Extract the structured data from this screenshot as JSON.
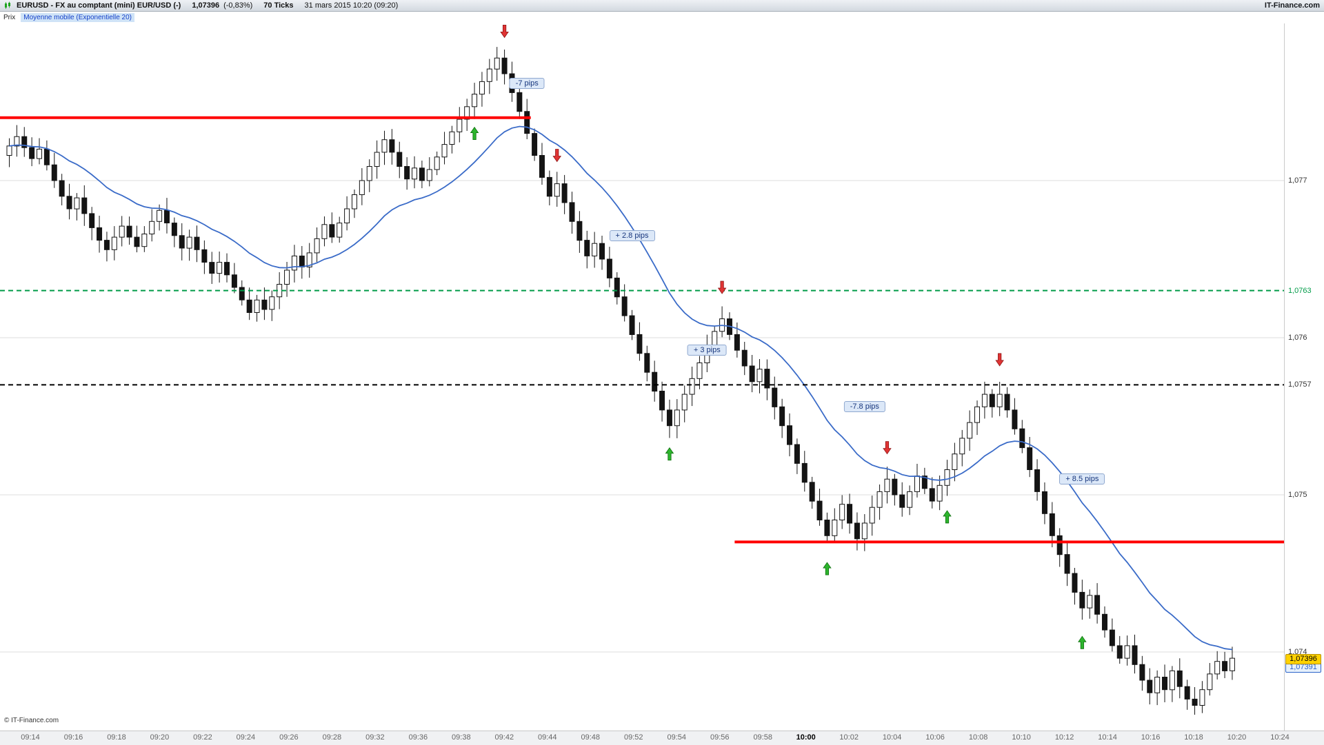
{
  "title_bar": {
    "instrument": "EURUSD - FX au comptant (mini) EUR/USD (-)",
    "price": "1,07396",
    "change": "(-0,83%)",
    "timeframe": "70 Ticks",
    "datetime": "31 mars 2015 10:20 (09:20)",
    "brand": "IT-Finance.com"
  },
  "indicator_bar": {
    "price_label": "Prix",
    "indicator_label": "Moyenne mobile (Exponentielle 20)"
  },
  "footer": {
    "copyright": "© IT-Finance.com"
  },
  "colors": {
    "up_fill": "#ffffff",
    "down_fill": "#141414",
    "candle_outline": "#141414",
    "grid": "#dedede",
    "up_arrow": "#2db52d",
    "up_arrow_edge": "#0e6e0e",
    "down_arrow": "#e03434",
    "down_arrow_edge": "#8f1414"
  },
  "x_axis": {
    "labels": [
      "09:14",
      "09:16",
      "09:18",
      "09:20",
      "09:22",
      "09:24",
      "09:26",
      "09:28",
      "09:32",
      "09:36",
      "09:38",
      "09:42",
      "09:44",
      "09:48",
      "09:52",
      "09:54",
      "09:56",
      "09:58",
      "10:00",
      "10:02",
      "10:04",
      "10:06",
      "10:08",
      "10:10",
      "10:12",
      "10:14",
      "10:16",
      "10:18",
      "10:20",
      "10:24"
    ],
    "bold_index": 18
  },
  "y_axis": {
    "labels": [
      {
        "text": "1,077",
        "price": 1.077,
        "color": "#333333"
      },
      {
        "text": "1,0763",
        "price": 1.0763,
        "color": "#009b48"
      },
      {
        "text": "1,076",
        "price": 1.076,
        "color": "#333333"
      },
      {
        "text": "1,0757",
        "price": 1.0757,
        "color": "#333333"
      },
      {
        "text": "1,075",
        "price": 1.075,
        "color": "#333333"
      },
      {
        "text": "1,074",
        "price": 1.074,
        "color": "#333333"
      }
    ],
    "price_badges": [
      {
        "text": "1,07396",
        "price": 1.07396,
        "bg": "#ffd200",
        "color": "#000000",
        "border": "#b89000"
      },
      {
        "text": "1,07391",
        "price": 1.07391,
        "bg": "#e6f0fb",
        "color": "#2a62c9",
        "border": "#2a62c9"
      }
    ]
  },
  "chart_data": {
    "type": "candlestick",
    "symbol": "EURUSD",
    "period": "70 ticks",
    "title": "EURUSD - FX au comptant (mini)",
    "price_range": [
      1.0735,
      1.078
    ],
    "gridlines": [
      1.077,
      1.076,
      1.075,
      1.074
    ],
    "first_open": 1.07716,
    "last_close": 1.07396,
    "closes": [
      1.07722,
      1.07728,
      1.07721,
      1.07714,
      1.0772,
      1.0771,
      1.077,
      1.0769,
      1.07682,
      1.07689,
      1.07679,
      1.0767,
      1.07662,
      1.07656,
      1.07664,
      1.07671,
      1.07664,
      1.07658,
      1.07666,
      1.07674,
      1.07681,
      1.07673,
      1.07665,
      1.07657,
      1.07664,
      1.07656,
      1.07648,
      1.07641,
      1.07648,
      1.0764,
      1.07632,
      1.07624,
      1.07616,
      1.07624,
      1.07618,
      1.07626,
      1.07634,
      1.07643,
      1.07652,
      1.07645,
      1.07654,
      1.07663,
      1.07672,
      1.07664,
      1.07673,
      1.07682,
      1.07691,
      1.077,
      1.07709,
      1.07718,
      1.07726,
      1.07718,
      1.07709,
      1.07701,
      1.07708,
      1.077,
      1.07707,
      1.07715,
      1.07723,
      1.07731,
      1.07739,
      1.07747,
      1.07755,
      1.07763,
      1.07771,
      1.07778,
      1.07768,
      1.07756,
      1.07744,
      1.0773,
      1.07716,
      1.07702,
      1.0769,
      1.07698,
      1.07686,
      1.07674,
      1.07662,
      1.07652,
      1.0766,
      1.0765,
      1.07638,
      1.07626,
      1.07614,
      1.07602,
      1.0759,
      1.07578,
      1.07566,
      1.07554,
      1.07544,
      1.07554,
      1.07564,
      1.07574,
      1.07584,
      1.07594,
      1.07604,
      1.07612,
      1.07602,
      1.07592,
      1.07582,
      1.07572,
      1.0758,
      1.07568,
      1.07556,
      1.07544,
      1.07532,
      1.0752,
      1.07508,
      1.07496,
      1.07484,
      1.07474,
      1.07484,
      1.07494,
      1.07482,
      1.07472,
      1.07482,
      1.07492,
      1.07502,
      1.0751,
      1.075,
      1.07492,
      1.07502,
      1.07512,
      1.07504,
      1.07496,
      1.07506,
      1.07516,
      1.07526,
      1.07536,
      1.07546,
      1.07556,
      1.07564,
      1.07556,
      1.07564,
      1.07554,
      1.07542,
      1.0753,
      1.07516,
      1.07502,
      1.07488,
      1.07474,
      1.07462,
      1.0745,
      1.07438,
      1.07428,
      1.07436,
      1.07424,
      1.07414,
      1.07404,
      1.07396,
      1.07404,
      1.07392,
      1.07382,
      1.07374,
      1.07384,
      1.07376,
      1.07388,
      1.07378,
      1.0737,
      1.07366,
      1.07376,
      1.07386,
      1.07394,
      1.07388,
      1.07396
    ],
    "indicator": {
      "name": "Moyenne mobile Exponentielle",
      "period": 20,
      "color": "#3a6bc8"
    },
    "levels": [
      {
        "name": "resistance-line",
        "price": 1.0774,
        "color": "#ff0000",
        "style": "solid",
        "width": 4,
        "from_index": null,
        "to_index": 69
      },
      {
        "name": "support-line",
        "price": 1.0747,
        "color": "#ff0000",
        "style": "solid",
        "width": 4,
        "from_index": 97,
        "to_index": null
      },
      {
        "name": "green-dashed-level",
        "price": 1.0763,
        "color": "#009b48",
        "style": "dashed",
        "width": 2,
        "from_index": null,
        "to_index": null
      },
      {
        "name": "black-dashed-level",
        "price": 1.0757,
        "color": "#000000",
        "style": "dashed",
        "width": 2,
        "from_index": null,
        "to_index": null
      }
    ],
    "signals": [
      {
        "index": 62,
        "dir": "up",
        "price": 1.0773
      },
      {
        "index": 66,
        "dir": "down",
        "price": 1.07795
      },
      {
        "index": 73,
        "dir": "down",
        "price": 1.07716
      },
      {
        "index": 88,
        "dir": "up",
        "price": 1.07526
      },
      {
        "index": 95,
        "dir": "down",
        "price": 1.07632
      },
      {
        "index": 109,
        "dir": "up",
        "price": 1.07453
      },
      {
        "index": 117,
        "dir": "down",
        "price": 1.0753
      },
      {
        "index": 125,
        "dir": "up",
        "price": 1.07486
      },
      {
        "index": 132,
        "dir": "down",
        "price": 1.07586
      },
      {
        "index": 143,
        "dir": "up",
        "price": 1.07406
      }
    ],
    "pips_labels": [
      {
        "text": "-7 pips",
        "index": 69,
        "price": 1.07762
      },
      {
        "text": "+ 2.8 pips",
        "index": 83,
        "price": 1.07665
      },
      {
        "text": "+ 3 pips",
        "index": 93,
        "price": 1.07592
      },
      {
        "text": "-7.8 pips",
        "index": 114,
        "price": 1.07556
      },
      {
        "text": "+ 8.5 pips",
        "index": 143,
        "price": 1.0751
      }
    ]
  }
}
